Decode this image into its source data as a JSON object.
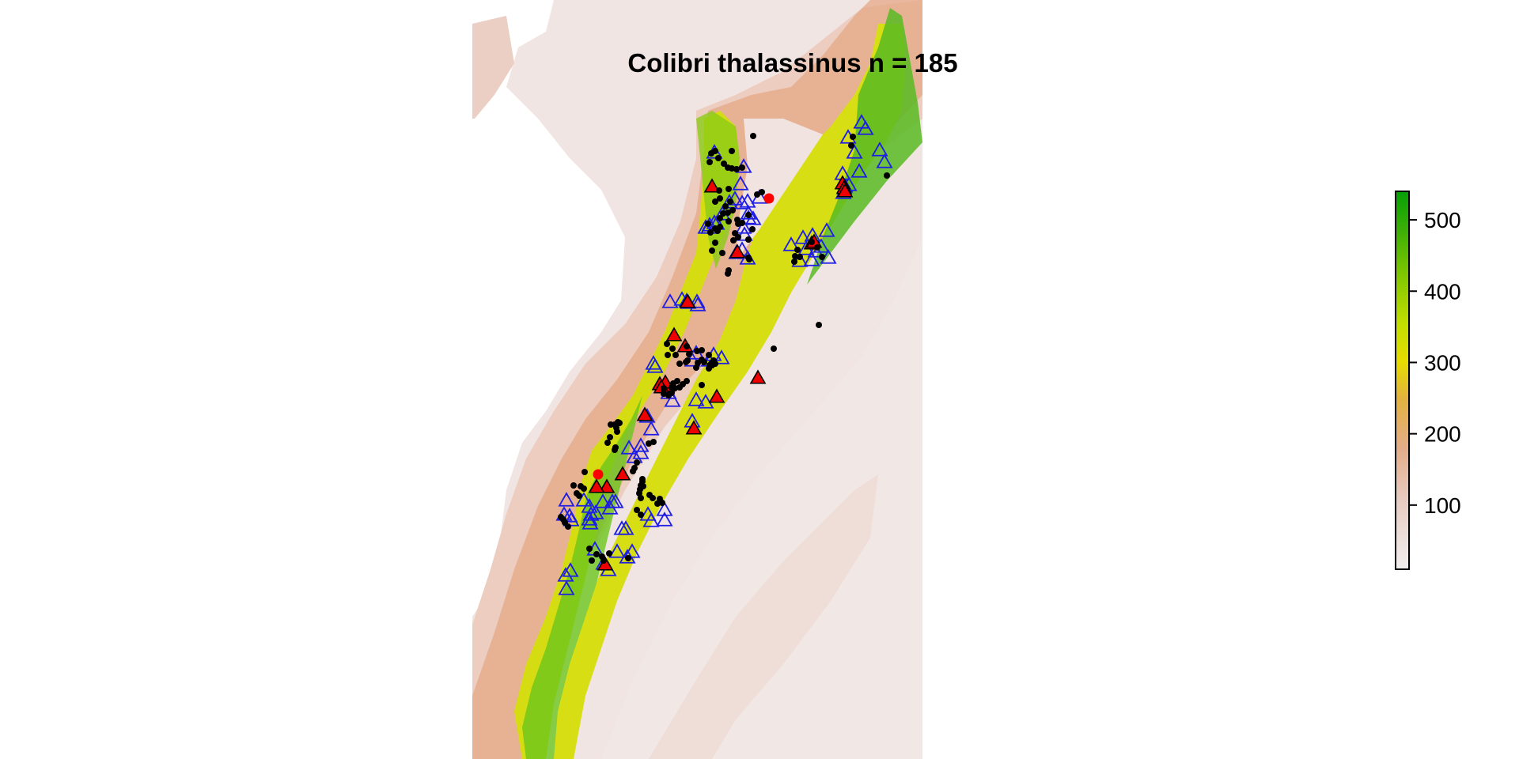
{
  "title": "Colibri thalassinus n = 185",
  "legend": {
    "min": 10,
    "max": 540,
    "ticks": [
      {
        "value": 100,
        "label": "100"
      },
      {
        "value": 200,
        "label": "200"
      },
      {
        "value": 300,
        "label": "300"
      },
      {
        "value": 400,
        "label": "400"
      },
      {
        "value": 500,
        "label": "500"
      }
    ],
    "colors": [
      "#f2eeee",
      "#ead8d2",
      "#e6b9a3",
      "#e3a97c",
      "#e9c02a",
      "#e6e000",
      "#b9dc00",
      "#70c400",
      "#2fad0a",
      "#06a007"
    ]
  },
  "colors": {
    "low": "#f2e8e6",
    "lowland": "#eccfc4",
    "foothill": "#e5a684",
    "mid": "#d9dc13",
    "high": "#7cc812",
    "peak": "#17a414",
    "background_point": "#000000",
    "test_triangle": "#1e1ee6",
    "training_triangle_fill": "#ee0000",
    "red_point": "#ff0000"
  }
}
